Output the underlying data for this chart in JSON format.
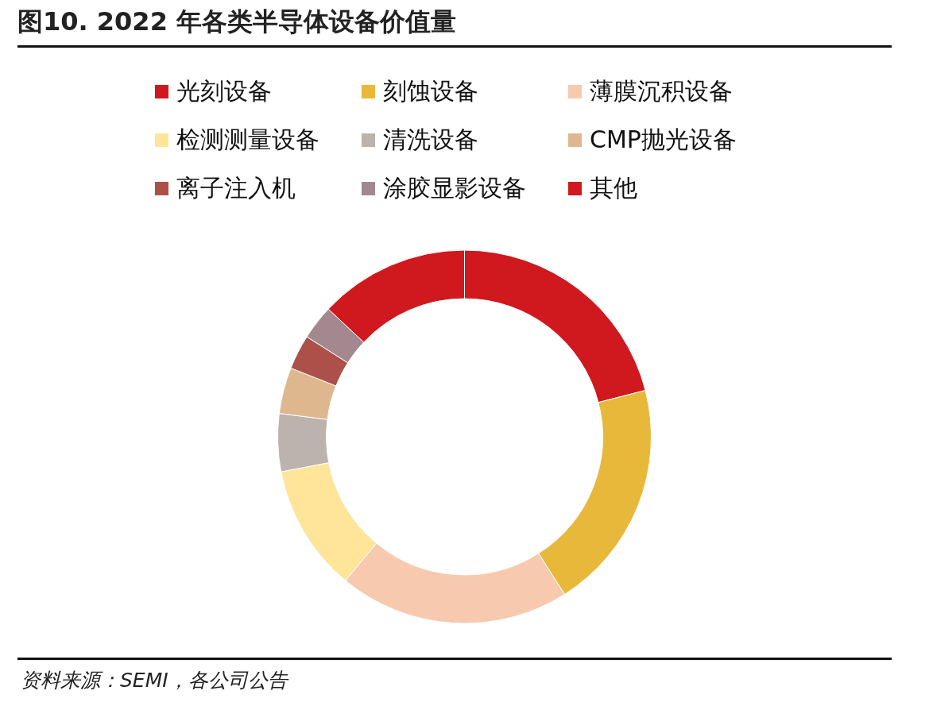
{
  "chart_data": {
    "type": "donut",
    "title": "图10. 2022 年各类半导体设备价值量",
    "categories": [
      "光刻设备",
      "刻蚀设备",
      "薄膜沉积设备",
      "检测测量设备",
      "清洗设备",
      "CMP抛光设备",
      "离子注入机",
      "涂胶显影设备",
      "其他"
    ],
    "values": [
      21,
      20,
      20,
      11,
      5,
      4,
      3,
      3,
      13
    ],
    "colors": [
      "#d0181f",
      "#e8b83a",
      "#f7c9ae",
      "#fee599",
      "#bcb2ae",
      "#dfb78f",
      "#ad5049",
      "#a3888f",
      "#d0181f"
    ],
    "legend": "top",
    "annotations": [
      "资料来源：SEMI，各公司公告"
    ]
  }
}
